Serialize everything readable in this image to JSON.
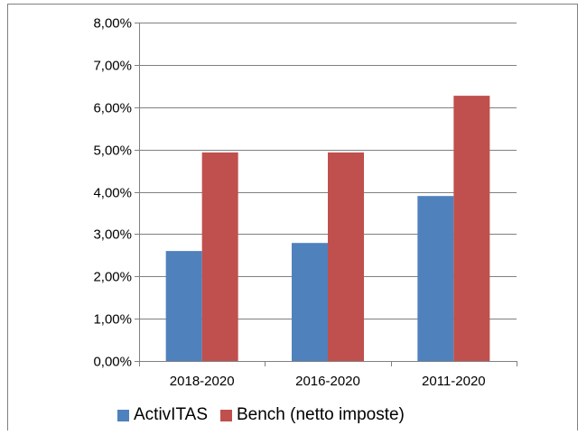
{
  "chart_data": {
    "type": "bar",
    "categories": [
      "2018-2020",
      "2016-2020",
      "2011-2020"
    ],
    "series": [
      {
        "name": "ActivITAS",
        "values": [
          2.6,
          2.79,
          3.9
        ],
        "color": "#4F81BD"
      },
      {
        "name": "Bench (netto imposte)",
        "values": [
          4.93,
          4.93,
          6.27
        ],
        "color": "#C0504D"
      }
    ],
    "y_ticks": [
      "0,00%",
      "1,00%",
      "2,00%",
      "3,00%",
      "4,00%",
      "5,00%",
      "6,00%",
      "7,00%",
      "8,00%"
    ],
    "ylim": [
      0,
      8
    ],
    "y_unit": "%",
    "grid": true,
    "legend_position": "bottom"
  }
}
